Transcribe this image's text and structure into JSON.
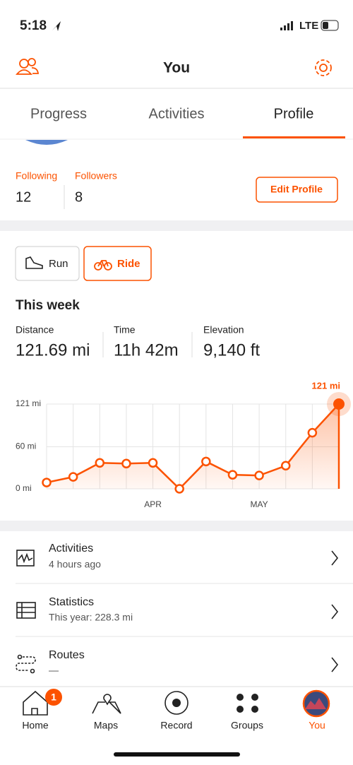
{
  "status": {
    "time": "5:18",
    "network": "LTE"
  },
  "header": {
    "title": "You"
  },
  "tabs": [
    "Progress",
    "Activities",
    "Profile"
  ],
  "social": {
    "following_label": "Following",
    "following": 12,
    "followers_label": "Followers",
    "followers": 8,
    "edit": "Edit Profile"
  },
  "sports": [
    "Run",
    "Ride"
  ],
  "week": {
    "title": "This week",
    "stats": [
      {
        "label": "Distance",
        "value": "121.69 mi"
      },
      {
        "label": "Time",
        "value": "11h 42m"
      },
      {
        "label": "Elevation",
        "value": "9,140 ft"
      }
    ]
  },
  "chart_data": {
    "type": "line",
    "categories": [
      null,
      null,
      null,
      null,
      "APR",
      null,
      null,
      null,
      "MAY",
      null,
      null,
      null
    ],
    "values": [
      9,
      17,
      37,
      36,
      37,
      0,
      39,
      20,
      19,
      33,
      80,
      121
    ],
    "value_labels": [
      null,
      null,
      null,
      null,
      null,
      null,
      null,
      null,
      null,
      null,
      null,
      "121 mi"
    ],
    "color": "#fc5200",
    "ylim": [
      0,
      121
    ],
    "yticks": [
      {
        "value": 0,
        "label": "0 mi"
      },
      {
        "value": 60,
        "label": "60 mi"
      },
      {
        "value": 121,
        "label": "121 mi"
      }
    ],
    "grid": true
  },
  "list": [
    {
      "title": "Activities",
      "subtitle": "4 hours ago"
    },
    {
      "title": "Statistics",
      "subtitle": "This year: 228.3 mi"
    },
    {
      "title": "Routes",
      "subtitle": "—"
    }
  ],
  "nav": {
    "items": [
      "Home",
      "Maps",
      "Record",
      "Groups",
      "You"
    ],
    "badge": "1"
  }
}
